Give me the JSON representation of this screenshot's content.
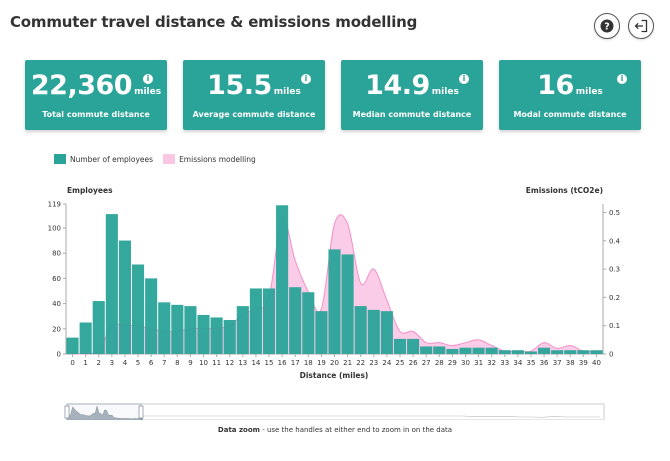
{
  "header": {
    "title": "Commuter travel distance & emissions modelling",
    "help_icon": "question-circle-icon",
    "exit_icon": "sign-out-icon"
  },
  "kpis": [
    {
      "value": "22,360",
      "unit": "miles",
      "label": "Total commute distance"
    },
    {
      "value": "15.5",
      "unit": "miles",
      "label": "Average commute distance"
    },
    {
      "value": "14.9",
      "unit": "miles",
      "label": "Median commute distance"
    },
    {
      "value": "16",
      "unit": "miles",
      "label": "Modal commute distance"
    }
  ],
  "legend": {
    "employees": "Number of employees",
    "emissions": "Emissions modelling"
  },
  "colors": {
    "teal": "#2aa399",
    "pink": "#f48fc8",
    "pink_fill": "#f9c7e4"
  },
  "zoom": {
    "label": "Data zoom",
    "hint": "- use the handles at either end to zoom in on the data"
  },
  "chart_data": {
    "type": "bar",
    "xlabel": "Distance (miles)",
    "ylabel": "Employees",
    "y2label": "Emissions (tCO2e)",
    "ylim": [
      0,
      119
    ],
    "y2lim": [
      0,
      0.53
    ],
    "yticks": [
      0,
      20,
      40,
      60,
      80,
      100,
      119
    ],
    "y2ticks": [
      0,
      0.1,
      0.2,
      0.3,
      0.4,
      0.5
    ],
    "categories": [
      "0",
      "1",
      "2",
      "3",
      "4",
      "5",
      "6",
      "7",
      "8",
      "9",
      "10",
      "11",
      "12",
      "13",
      "14",
      "15",
      "16",
      "17",
      "18",
      "19",
      "20",
      "21",
      "22",
      "23",
      "24",
      "25",
      "26",
      "27",
      "28",
      "29",
      "30",
      "31",
      "32",
      "33",
      "34",
      "35",
      "36",
      "37",
      "38",
      "39",
      "40"
    ],
    "series": [
      {
        "name": "Number of employees",
        "type": "bar",
        "values": [
          13,
          25,
          42,
          111,
          90,
          71,
          60,
          41,
          39,
          38,
          31,
          29,
          27,
          38,
          52,
          52,
          118,
          53,
          49,
          34,
          83,
          79,
          38,
          35,
          34,
          12,
          12,
          6,
          6,
          4,
          5,
          5,
          5,
          3,
          3,
          2,
          5,
          3,
          3,
          3,
          3
        ]
      },
      {
        "name": "Emissions modelling",
        "type": "area",
        "values": [
          0.0,
          0.0,
          0.01,
          0.1,
          0.1,
          0.1,
          0.09,
          0.08,
          0.08,
          0.09,
          0.09,
          0.09,
          0.1,
          0.14,
          0.16,
          0.2,
          0.48,
          0.33,
          0.22,
          0.16,
          0.46,
          0.46,
          0.25,
          0.3,
          0.19,
          0.08,
          0.08,
          0.04,
          0.04,
          0.03,
          0.04,
          0.05,
          0.03,
          0.01,
          0.01,
          0.01,
          0.04,
          0.02,
          0.03,
          0.01,
          0.01
        ]
      }
    ]
  }
}
